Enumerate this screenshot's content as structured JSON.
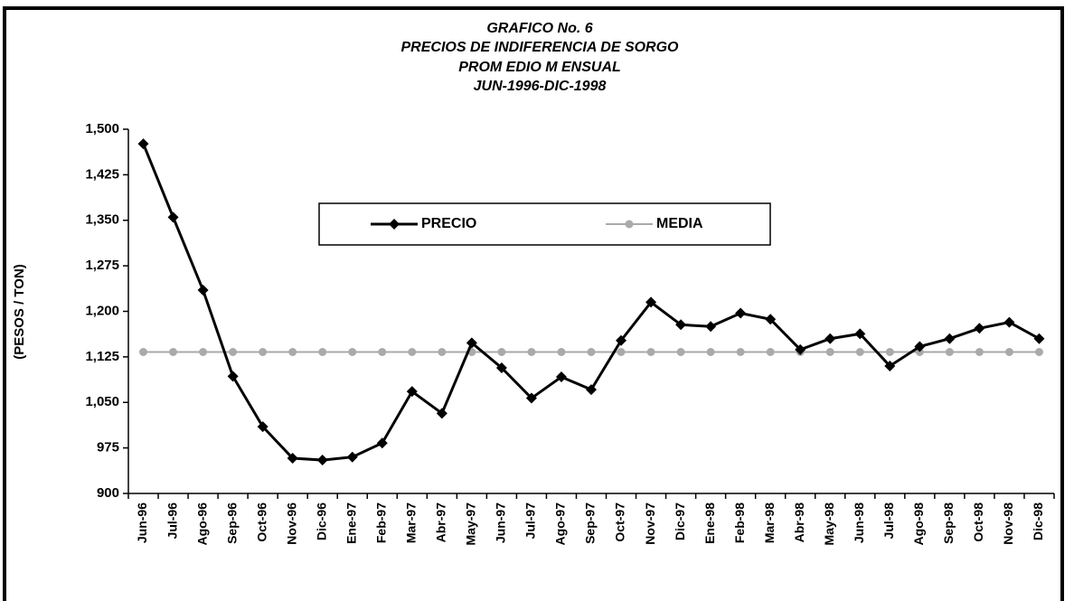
{
  "chart_data": {
    "type": "line",
    "title": [
      "GRAFICO No. 6",
      "PRECIOS DE INDIFERENCIA  DE SORGO",
      "PROM EDIO M ENSUAL",
      "JUN-1996-DIC-1998"
    ],
    "y_label": "(PESOS / TON)",
    "categories": [
      "Jun-96",
      "Jul-96",
      "Ago-96",
      "Sep-96",
      "Oct-96",
      "Nov-96",
      "Dic-96",
      "Ene-97",
      "Feb-97",
      "Mar-97",
      "Abr-97",
      "May-97",
      "Jun-97",
      "Jul-97",
      "Ago-97",
      "Sep-97",
      "Oct-97",
      "Nov-97",
      "Dic-97",
      "Ene-98",
      "Feb-98",
      "Mar-98",
      "Abr-98",
      "May-98",
      "Jun-98",
      "Jul-98",
      "Ago-98",
      "Sep-98",
      "Oct-98",
      "Nov-98",
      "Dic-98"
    ],
    "series": [
      {
        "name": "PRECIO",
        "color": "#000000",
        "marker": "diamond",
        "values": [
          1476,
          1355,
          1235,
          1093,
          1010,
          958,
          955,
          960,
          983,
          1068,
          1032,
          1148,
          1107,
          1057,
          1092,
          1071,
          1152,
          1215,
          1178,
          1175,
          1197,
          1187,
          1137,
          1155,
          1163,
          1110,
          1142,
          1155,
          1172,
          1182,
          1155
        ]
      },
      {
        "name": "MEDIA",
        "color": "#aaaaaa",
        "marker": "circle",
        "values": [
          1133,
          1133,
          1133,
          1133,
          1133,
          1133,
          1133,
          1133,
          1133,
          1133,
          1133,
          1133,
          1133,
          1133,
          1133,
          1133,
          1133,
          1133,
          1133,
          1133,
          1133,
          1133,
          1133,
          1133,
          1133,
          1133,
          1133,
          1133,
          1133,
          1133,
          1133
        ]
      }
    ],
    "ylim": [
      900,
      1500
    ],
    "yticks": [
      {
        "value": 900,
        "label": "900"
      },
      {
        "value": 975,
        "label": "975"
      },
      {
        "value": 1050,
        "label": "1,050"
      },
      {
        "value": 1125,
        "label": "1,125"
      },
      {
        "value": 1200,
        "label": "1,200"
      },
      {
        "value": 1275,
        "label": "1,275"
      },
      {
        "value": 1350,
        "label": "1,350"
      },
      {
        "value": 1425,
        "label": "1,425"
      },
      {
        "value": 1500,
        "label": "1,500"
      }
    ],
    "legend": "top"
  }
}
